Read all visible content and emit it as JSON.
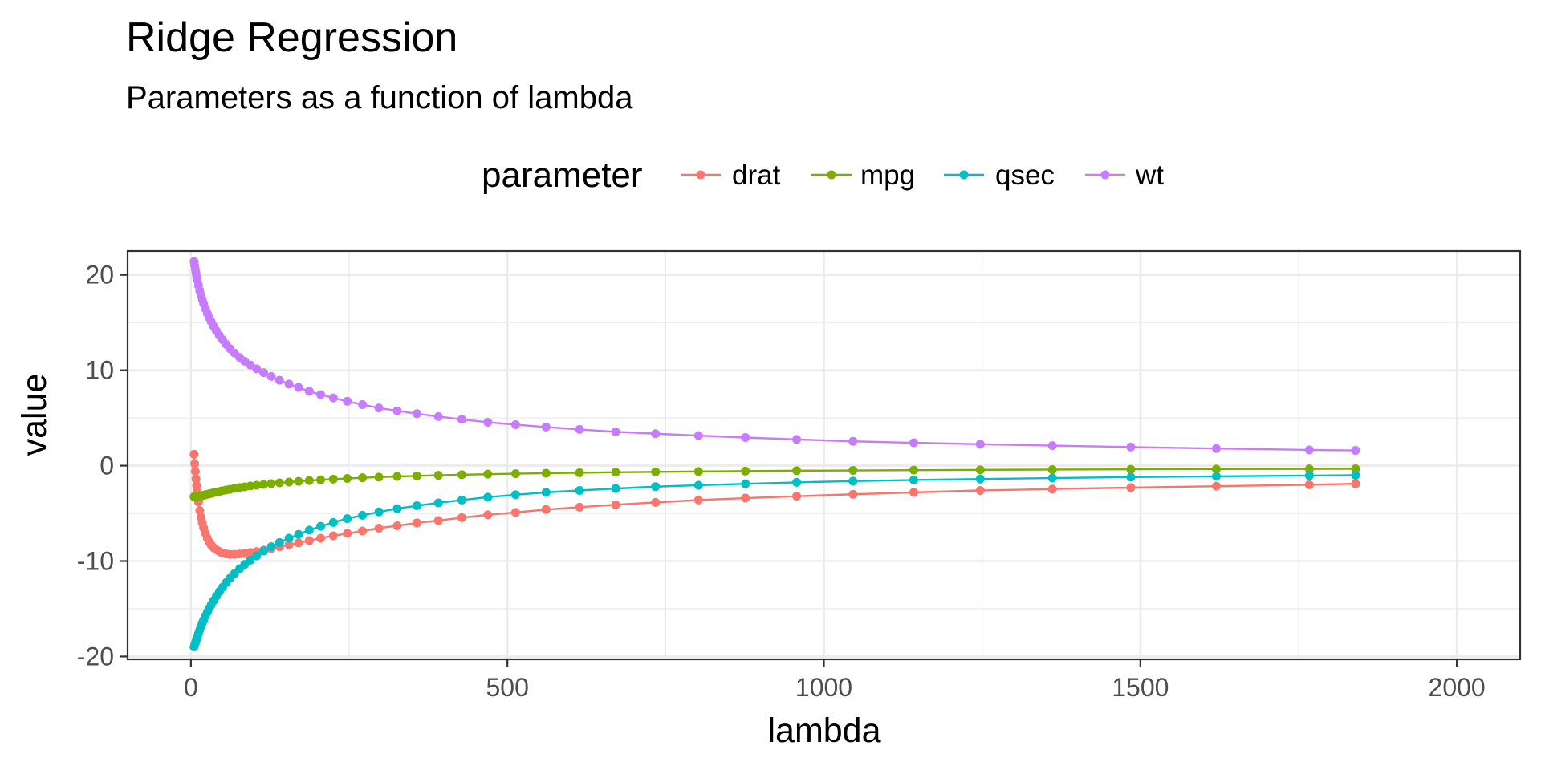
{
  "chart_data": {
    "type": "line",
    "title": "Ridge Regression",
    "subtitle": "Parameters as a function of lambda",
    "xlabel": "lambda",
    "ylabel": "value",
    "xlim": [
      -100,
      2100
    ],
    "ylim": [
      -20.3,
      22.5
    ],
    "xticks": [
      0,
      500,
      1000,
      1500,
      2000
    ],
    "xtick_labels": [
      "0",
      "500",
      "1000",
      "1500",
      "2000"
    ],
    "yticks": [
      -20,
      -10,
      0,
      10,
      20
    ],
    "ytick_labels": [
      "-20",
      "-10",
      "0",
      "10",
      "20"
    ],
    "legend_title": "parameter",
    "legend_position": "top",
    "grid": true,
    "x": [
      5,
      6,
      7,
      8,
      9,
      10,
      12,
      14,
      16,
      18,
      20,
      23,
      26,
      29,
      32,
      36,
      40,
      45,
      50,
      56,
      62,
      69,
      77,
      85,
      94,
      104,
      115,
      127,
      140,
      155,
      170,
      187,
      205,
      225,
      247,
      271,
      297,
      326,
      357,
      391,
      428,
      469,
      513,
      561,
      614,
      671,
      734,
      802,
      876,
      957,
      1046,
      1142,
      1247,
      1361,
      1485,
      1620,
      1767,
      1840
    ],
    "series": [
      {
        "name": "drat",
        "color": "#F8766D",
        "values": [
          1.2,
          0.2,
          -0.6,
          -1.4,
          -2.1,
          -2.7,
          -3.8,
          -4.7,
          -5.4,
          -6.0,
          -6.5,
          -7.1,
          -7.6,
          -8.0,
          -8.3,
          -8.6,
          -8.8,
          -9.0,
          -9.15,
          -9.25,
          -9.3,
          -9.3,
          -9.25,
          -9.2,
          -9.1,
          -9.0,
          -8.85,
          -8.7,
          -8.5,
          -8.3,
          -8.1,
          -7.85,
          -7.6,
          -7.35,
          -7.1,
          -6.85,
          -6.55,
          -6.3,
          -6.0,
          -5.75,
          -5.45,
          -5.15,
          -4.9,
          -4.6,
          -4.35,
          -4.1,
          -3.85,
          -3.6,
          -3.4,
          -3.2,
          -3.0,
          -2.8,
          -2.6,
          -2.45,
          -2.3,
          -2.15,
          -2.0,
          -1.9
        ]
      },
      {
        "name": "mpg",
        "color": "#7CAE00",
        "values": [
          -3.25,
          -3.25,
          -3.25,
          -3.25,
          -3.25,
          -3.24,
          -3.22,
          -3.2,
          -3.17,
          -3.14,
          -3.1,
          -3.05,
          -3.0,
          -2.95,
          -2.9,
          -2.83,
          -2.77,
          -2.7,
          -2.62,
          -2.55,
          -2.47,
          -2.38,
          -2.3,
          -2.22,
          -2.13,
          -2.05,
          -1.97,
          -1.88,
          -1.8,
          -1.72,
          -1.64,
          -1.56,
          -1.49,
          -1.41,
          -1.34,
          -1.27,
          -1.2,
          -1.13,
          -1.07,
          -1.01,
          -0.95,
          -0.89,
          -0.84,
          -0.79,
          -0.74,
          -0.69,
          -0.65,
          -0.61,
          -0.57,
          -0.53,
          -0.5,
          -0.47,
          -0.44,
          -0.41,
          -0.38,
          -0.36,
          -0.34,
          -0.33
        ]
      },
      {
        "name": "qsec",
        "color": "#00BFC4",
        "values": [
          -19.0,
          -18.8,
          -18.6,
          -18.4,
          -18.2,
          -18.0,
          -17.6,
          -17.2,
          -16.85,
          -16.5,
          -16.2,
          -15.75,
          -15.35,
          -14.95,
          -14.6,
          -14.15,
          -13.7,
          -13.2,
          -12.75,
          -12.25,
          -11.8,
          -11.3,
          -10.8,
          -10.35,
          -9.9,
          -9.45,
          -8.95,
          -8.5,
          -8.05,
          -7.6,
          -7.2,
          -6.75,
          -6.35,
          -5.95,
          -5.55,
          -5.2,
          -4.85,
          -4.5,
          -4.2,
          -3.9,
          -3.6,
          -3.3,
          -3.05,
          -2.8,
          -2.6,
          -2.4,
          -2.2,
          -2.05,
          -1.9,
          -1.75,
          -1.62,
          -1.5,
          -1.4,
          -1.3,
          -1.2,
          -1.12,
          -1.04,
          -1.0
        ]
      },
      {
        "name": "wt",
        "color": "#C77CFF",
        "values": [
          21.4,
          21.0,
          20.6,
          20.2,
          19.85,
          19.5,
          18.9,
          18.35,
          17.85,
          17.4,
          17.0,
          16.45,
          15.95,
          15.5,
          15.1,
          14.6,
          14.15,
          13.65,
          13.2,
          12.7,
          12.25,
          11.8,
          11.35,
          10.95,
          10.55,
          10.15,
          9.75,
          9.35,
          8.95,
          8.55,
          8.2,
          7.8,
          7.45,
          7.1,
          6.75,
          6.4,
          6.05,
          5.75,
          5.45,
          5.15,
          4.85,
          4.55,
          4.3,
          4.05,
          3.8,
          3.55,
          3.35,
          3.15,
          2.95,
          2.75,
          2.55,
          2.4,
          2.25,
          2.1,
          1.95,
          1.8,
          1.65,
          1.6
        ]
      }
    ]
  }
}
